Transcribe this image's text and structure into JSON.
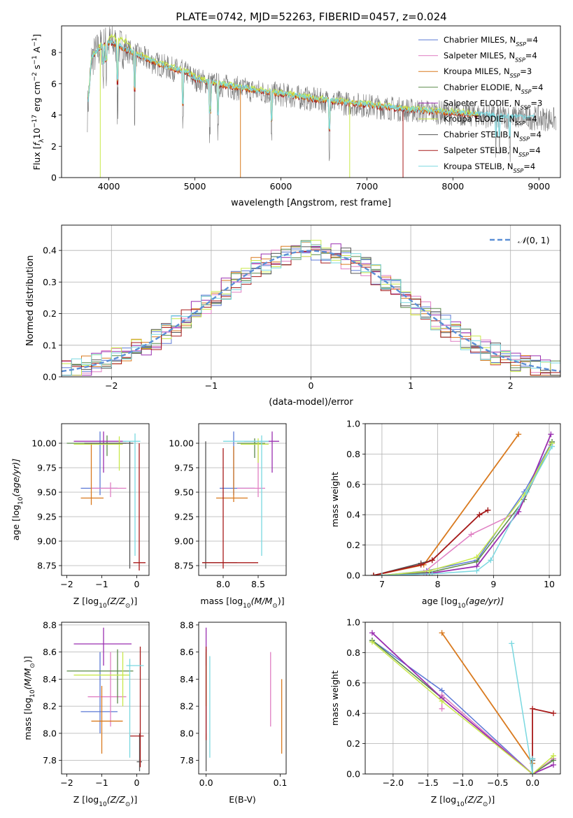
{
  "figure_title": "PLATE=0742, MJD=52263, FIBERID=0457, z=0.024",
  "models": [
    {
      "name": "Chabrier MILES",
      "nssp": "4",
      "color": "#5b78d6"
    },
    {
      "name": "Salpeter MILES",
      "nssp": "4",
      "color": "#e07fc3"
    },
    {
      "name": "Kroupa MILES",
      "nssp": "3",
      "color": "#d97a1f"
    },
    {
      "name": "Chabrier ELODIE",
      "nssp": "4",
      "color": "#5a8a4a"
    },
    {
      "name": "Salpeter ELODIE",
      "nssp": "3",
      "color": "#9a2fb0"
    },
    {
      "name": "Kroupa ELODIE",
      "nssp": "4",
      "color": "#c8e84a"
    },
    {
      "name": "Chabrier STELIB",
      "nssp": "4",
      "color": "#555555"
    },
    {
      "name": "Salpeter STELIB",
      "nssp": "4",
      "color": "#a81a1a"
    },
    {
      "name": "Kroupa STELIB",
      "nssp": "4",
      "color": "#7ad8e0"
    }
  ],
  "chart_data": [
    {
      "id": "spectrum",
      "type": "line",
      "xlabel": "wavelength [Angstrom, rest frame]",
      "ylabel_parts": [
        "Flux [",
        "f",
        "λ",
        "10",
        "−17",
        " erg cm",
        "−2",
        " s",
        "−1",
        " A",
        "−1",
        "]"
      ],
      "xlim": [
        3450,
        9250
      ],
      "ylim": [
        0,
        9.7
      ],
      "xticks": [
        4000,
        5000,
        6000,
        7000,
        8000,
        9000
      ],
      "yticks": [
        0,
        2,
        4,
        6,
        8
      ],
      "legend_position": "upper-right",
      "continuum": [
        [
          3750,
          4.2
        ],
        [
          3800,
          7.6
        ],
        [
          3900,
          8.3
        ],
        [
          4000,
          8.6
        ],
        [
          4100,
          8.4
        ],
        [
          4300,
          7.9
        ],
        [
          4500,
          7.4
        ],
        [
          4700,
          7.0
        ],
        [
          4900,
          6.7
        ],
        [
          5000,
          6.3
        ],
        [
          5200,
          6.0
        ],
        [
          5500,
          5.7
        ],
        [
          6000,
          5.3
        ],
        [
          6500,
          4.9
        ],
        [
          7000,
          4.6
        ],
        [
          7500,
          4.3
        ],
        [
          8000,
          4.1
        ],
        [
          8500,
          3.9
        ],
        [
          9000,
          3.8
        ],
        [
          9200,
          3.7
        ]
      ],
      "absorption_features": [
        [
          3934,
          3.2
        ],
        [
          3969,
          3.0
        ],
        [
          4102,
          6.5
        ],
        [
          4300,
          6.4
        ],
        [
          4861,
          6.0
        ],
        [
          5175,
          5.2
        ],
        [
          5270,
          5.3
        ],
        [
          5890,
          5.0
        ],
        [
          6563,
          5.0
        ],
        [
          8500,
          3.6
        ],
        [
          8542,
          3.5
        ],
        [
          8662,
          3.5
        ]
      ]
    },
    {
      "id": "residuals",
      "type": "histogram",
      "xlabel": "(data-model)/error",
      "ylabel": "Normed distribution",
      "xlim": [
        -2.5,
        2.5
      ],
      "ylim": [
        0,
        0.48
      ],
      "xticks": [
        -2,
        -1,
        0,
        1,
        2
      ],
      "yticks": [
        0.0,
        0.1,
        0.2,
        0.3,
        0.4
      ],
      "grid": true,
      "bin_width": 0.1,
      "legend_label_parts": [
        "𝒩",
        "(0, 1)"
      ],
      "legend_position": "upper-right"
    },
    {
      "id": "age-vs-Z",
      "type": "errorbar",
      "xlabel_parts": [
        "Z [log",
        "10",
        "(Z/Z",
        "⊙",
        ")]"
      ],
      "ylabel_parts": [
        "age  [log",
        "10",
        "(age/yr)]"
      ],
      "xlim": [
        -2.15,
        0.35
      ],
      "ylim": [
        8.65,
        10.2
      ],
      "xticks": [
        -2,
        -1,
        0
      ],
      "yticks": [
        8.75,
        9.0,
        9.25,
        9.5,
        9.75,
        10.0
      ],
      "grid_y": true,
      "points": [
        {
          "model": 0,
          "x": -1.05,
          "xe": [
            -1.6,
            -0.55
          ],
          "y": 9.54,
          "ye": [
            9.47,
            10.12
          ]
        },
        {
          "model": 1,
          "x": -0.75,
          "xe": [
            -1.3,
            -0.3
          ],
          "y": 9.54,
          "ye": [
            9.45,
            9.6
          ]
        },
        {
          "model": 2,
          "x": -1.3,
          "xe": [
            -1.6,
            -0.95
          ],
          "y": 9.44,
          "ye": [
            9.37,
            10.0
          ]
        },
        {
          "model": 3,
          "x": -0.85,
          "xe": [
            -2.0,
            -0.3
          ],
          "y": 10.0,
          "ye": [
            9.87,
            10.08
          ]
        },
        {
          "model": 4,
          "x": -0.95,
          "xe": [
            -1.8,
            -0.3
          ],
          "y": 10.02,
          "ye": [
            9.7,
            10.12
          ]
        },
        {
          "model": 5,
          "x": -0.5,
          "xe": [
            -1.8,
            -0.4
          ],
          "y": 9.99,
          "ye": [
            9.72,
            10.07
          ]
        },
        {
          "model": 6,
          "x": -0.2,
          "xe": [
            -1.5,
            -0.1
          ],
          "y": 10.0,
          "ye": [
            8.72,
            10.02
          ]
        },
        {
          "model": 7,
          "x": 0.07,
          "xe": [
            -0.1,
            0.25
          ],
          "y": 8.78,
          "ye": [
            8.7,
            10.0
          ]
        },
        {
          "model": 8,
          "x": -0.05,
          "xe": [
            -0.4,
            0.1
          ],
          "y": 10.02,
          "ye": [
            8.85,
            10.1
          ]
        }
      ]
    },
    {
      "id": "age-vs-mass",
      "type": "errorbar",
      "xlabel_parts": [
        "mass [log",
        "10",
        "(M/M",
        "⊙",
        ")]"
      ],
      "ylabel_parts": [],
      "xlim": [
        7.65,
        8.9
      ],
      "ylim": [
        8.65,
        10.2
      ],
      "xticks": [
        8.0,
        8.5
      ],
      "yticks": [
        8.75,
        9.0,
        9.25,
        9.5,
        9.75,
        10.0
      ],
      "grid_y": true,
      "points": [
        {
          "model": 0,
          "x": 8.15,
          "xe": [
            7.95,
            8.45
          ],
          "y": 9.54,
          "ye": [
            9.47,
            10.12
          ]
        },
        {
          "model": 1,
          "x": 8.5,
          "xe": [
            8.2,
            8.6
          ],
          "y": 9.54,
          "ye": [
            9.45,
            10.02
          ]
        },
        {
          "model": 2,
          "x": 8.15,
          "xe": [
            7.9,
            8.35
          ],
          "y": 9.44,
          "ye": [
            9.4,
            9.97
          ]
        },
        {
          "model": 3,
          "x": 8.45,
          "xe": [
            8.2,
            8.6
          ],
          "y": 10.0,
          "ye": [
            9.85,
            10.05
          ]
        },
        {
          "model": 4,
          "x": 8.7,
          "xe": [
            8.3,
            8.8
          ],
          "y": 10.02,
          "ye": [
            9.7,
            10.12
          ]
        },
        {
          "model": 5,
          "x": 8.5,
          "xe": [
            8.25,
            8.65
          ],
          "y": 9.99,
          "ye": [
            9.8,
            10.05
          ]
        },
        {
          "model": 6,
          "x": 7.75,
          "xe": [
            7.7,
            8.2
          ],
          "y": 8.78,
          "ye": [
            8.72,
            10.02
          ]
        },
        {
          "model": 7,
          "x": 8.0,
          "xe": [
            7.7,
            8.5
          ],
          "y": 8.78,
          "ye": [
            8.72,
            9.95
          ]
        },
        {
          "model": 8,
          "x": 8.55,
          "xe": [
            8.0,
            8.65
          ],
          "y": 10.02,
          "ye": [
            8.85,
            10.08
          ]
        }
      ]
    },
    {
      "id": "weight-vs-age",
      "type": "line",
      "xlabel_parts": [
        "age  [log",
        "10",
        "(age/yr)]"
      ],
      "ylabel": "mass weight",
      "xlim": [
        6.7,
        10.2
      ],
      "ylim": [
        0,
        1.0
      ],
      "xticks": [
        7,
        8,
        9,
        10
      ],
      "yticks": [
        0.0,
        0.2,
        0.4,
        0.6,
        0.8,
        1.0
      ],
      "grid": true,
      "series": [
        {
          "model": 0,
          "x": [
            7.0,
            7.8,
            8.7,
            9.55,
            10.05
          ],
          "y": [
            0.0,
            0.03,
            0.1,
            0.55,
            0.88
          ]
        },
        {
          "model": 1,
          "x": [
            7.0,
            7.75,
            8.6,
            9.45,
            10.02
          ],
          "y": [
            0.0,
            0.02,
            0.27,
            0.42,
            0.86
          ]
        },
        {
          "model": 2,
          "x": [
            6.85,
            7.75,
            9.45
          ],
          "y": [
            0.0,
            0.07,
            0.93
          ]
        },
        {
          "model": 3,
          "x": [
            7.0,
            7.85,
            8.7,
            9.55,
            10.05
          ],
          "y": [
            0.0,
            0.02,
            0.09,
            0.5,
            0.88
          ]
        },
        {
          "model": 4,
          "x": [
            7.0,
            7.8,
            8.7,
            9.45,
            10.03
          ],
          "y": [
            0.0,
            0.01,
            0.06,
            0.42,
            0.93
          ]
        },
        {
          "model": 5,
          "x": [
            7.0,
            7.85,
            8.7,
            9.55,
            10.05
          ],
          "y": [
            0.0,
            0.03,
            0.12,
            0.53,
            0.87
          ]
        },
        {
          "model": 6,
          "x": [
            6.85,
            7.7,
            7.9,
            8.75,
            8.9
          ],
          "y": [
            0.0,
            0.08,
            0.1,
            0.4,
            0.43
          ]
        },
        {
          "model": 7,
          "x": [
            6.85,
            7.7,
            7.9,
            8.75,
            8.9
          ],
          "y": [
            0.0,
            0.07,
            0.1,
            0.4,
            0.43
          ]
        },
        {
          "model": 8,
          "x": [
            7.0,
            7.9,
            8.7,
            8.95,
            9.6,
            10.05
          ],
          "y": [
            0.0,
            0.01,
            0.03,
            0.1,
            0.55,
            0.85
          ]
        }
      ]
    },
    {
      "id": "mass-vs-Z",
      "type": "errorbar",
      "xlabel_parts": [
        "Z [log",
        "10",
        "(Z/Z",
        "⊙",
        ")]"
      ],
      "ylabel_parts": [
        "mass [log",
        "10",
        "(M/M",
        "⊙",
        ")]"
      ],
      "xlim": [
        -2.15,
        0.35
      ],
      "ylim": [
        7.7,
        8.82
      ],
      "xticks": [
        -2,
        -1,
        0
      ],
      "yticks": [
        7.8,
        8.0,
        8.2,
        8.4,
        8.6,
        8.8
      ],
      "grid_y": true,
      "points": [
        {
          "model": 0,
          "x": -1.05,
          "xe": [
            -1.6,
            -0.55
          ],
          "y": 8.16,
          "ye": [
            8.0,
            8.6
          ]
        },
        {
          "model": 1,
          "x": -0.75,
          "xe": [
            -1.4,
            -0.3
          ],
          "y": 8.27,
          "ye": [
            8.05,
            8.6
          ]
        },
        {
          "model": 2,
          "x": -1.0,
          "xe": [
            -1.3,
            -0.4
          ],
          "y": 8.09,
          "ye": [
            7.85,
            8.35
          ]
        },
        {
          "model": 3,
          "x": -0.55,
          "xe": [
            -2.0,
            -0.1
          ],
          "y": 8.46,
          "ye": [
            8.22,
            8.62
          ]
        },
        {
          "model": 4,
          "x": -0.95,
          "xe": [
            -1.8,
            -0.15
          ],
          "y": 8.66,
          "ye": [
            8.5,
            8.78
          ]
        },
        {
          "model": 5,
          "x": -0.4,
          "xe": [
            -1.8,
            -0.2
          ],
          "y": 8.43,
          "ye": [
            8.2,
            8.6
          ]
        },
        {
          "model": 6,
          "x": 0.08,
          "xe": [
            0.0,
            0.15
          ],
          "y": 7.79,
          "ye": [
            7.72,
            8.0
          ]
        },
        {
          "model": 7,
          "x": 0.1,
          "xe": [
            -0.2,
            0.2
          ],
          "y": 7.98,
          "ye": [
            7.75,
            8.64
          ]
        },
        {
          "model": 8,
          "x": -0.2,
          "xe": [
            -0.3,
            0.2
          ],
          "y": 8.5,
          "ye": [
            7.82,
            8.55
          ]
        }
      ]
    },
    {
      "id": "mass-vs-EBV",
      "type": "errorbar",
      "xlabel": "E(B-V)",
      "ylabel_parts": [],
      "xlim": [
        -0.01,
        0.108
      ],
      "ylim": [
        7.7,
        8.82
      ],
      "xticks": [
        0.0,
        0.1
      ],
      "yticks": [
        7.8,
        8.0,
        8.2,
        8.4,
        8.6,
        8.8
      ],
      "grid_y": false,
      "points": [
        {
          "model": 0,
          "x": 0.0,
          "y": 8.3,
          "ye": [
            8.0,
            8.6
          ]
        },
        {
          "model": 1,
          "x": 0.087,
          "y": 8.3,
          "ye": [
            8.05,
            8.6
          ]
        },
        {
          "model": 2,
          "x": 0.102,
          "y": 8.1,
          "ye": [
            7.85,
            8.4
          ]
        },
        {
          "model": 3,
          "x": 0.0,
          "y": 8.46,
          "ye": [
            8.2,
            8.62
          ]
        },
        {
          "model": 4,
          "x": 0.0,
          "y": 8.66,
          "ye": [
            8.5,
            8.78
          ]
        },
        {
          "model": 5,
          "x": 0.0,
          "y": 8.43,
          "ye": [
            8.2,
            8.6
          ]
        },
        {
          "model": 6,
          "x": 0.0,
          "y": 7.9,
          "ye": [
            7.72,
            8.0
          ]
        },
        {
          "model": 7,
          "x": 0.0,
          "y": 8.3,
          "ye": [
            7.95,
            8.64
          ]
        },
        {
          "model": 8,
          "x": 0.005,
          "y": 8.2,
          "ye": [
            7.82,
            8.57
          ]
        }
      ]
    },
    {
      "id": "weight-vs-Z",
      "type": "line",
      "xlabel_parts": [
        "Z [log",
        "10",
        "(Z/Z",
        "⊙",
        ")]"
      ],
      "ylabel": "mass weight",
      "xlim": [
        -2.4,
        0.4
      ],
      "ylim": [
        0,
        1.0
      ],
      "xticks": [
        -2.0,
        -1.5,
        -1.0,
        -0.5,
        0.0
      ],
      "yticks": [
        0.0,
        0.2,
        0.4,
        0.6,
        0.8,
        1.0
      ],
      "tick_labels_x": [
        "−2.0",
        "−1.5",
        "−1.0",
        "−0.5",
        "0.0"
      ],
      "grid": true,
      "series": [
        {
          "model": 0,
          "x": [
            -2.3,
            -1.3,
            0.0,
            0.3
          ],
          "y": [
            0.88,
            0.55,
            0.0,
            0.1
          ]
        },
        {
          "model": 1,
          "x": [
            -1.3,
            -1.3,
            0.0,
            0.3
          ],
          "y": [
            0.43,
            0.52,
            0.0,
            0.1
          ]
        },
        {
          "model": 2,
          "x": [
            -1.3,
            0.0
          ],
          "y": [
            0.93,
            0.07
          ]
        },
        {
          "model": 3,
          "x": [
            -2.3,
            -1.3,
            0.0,
            0.3
          ],
          "y": [
            0.88,
            0.5,
            0.0,
            0.09
          ]
        },
        {
          "model": 4,
          "x": [
            -2.3,
            -1.3,
            0.0,
            0.3
          ],
          "y": [
            0.93,
            0.5,
            0.0,
            0.06
          ]
        },
        {
          "model": 5,
          "x": [
            -2.3,
            -1.3,
            0.0,
            0.3
          ],
          "y": [
            0.87,
            0.48,
            0.0,
            0.12
          ]
        },
        {
          "model": 6,
          "x": [
            0.0,
            0.0,
            0.0
          ],
          "y": [
            0.0,
            0.1,
            0.09
          ]
        },
        {
          "model": 7,
          "x": [
            0.0,
            0.0,
            0.3
          ],
          "y": [
            0.0,
            0.43,
            0.4
          ]
        },
        {
          "model": 8,
          "x": [
            -0.3,
            0.0,
            0.0
          ],
          "y": [
            0.86,
            0.0,
            0.1
          ]
        }
      ]
    }
  ]
}
